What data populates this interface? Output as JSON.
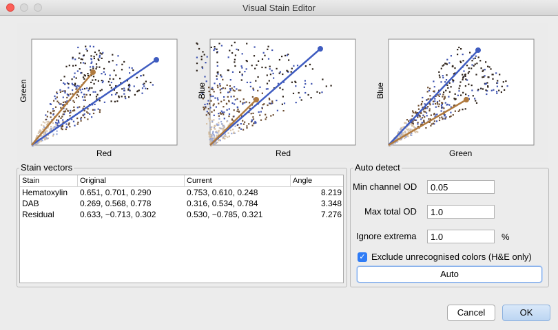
{
  "window": {
    "title": "Visual Stain Editor"
  },
  "plots": [
    {
      "xlabel": "Red",
      "ylabel": "Green"
    },
    {
      "xlabel": "Red",
      "ylabel": "Blue"
    },
    {
      "xlabel": "Green",
      "ylabel": "Blue"
    }
  ],
  "stain_vectors": {
    "title": "Stain vectors",
    "columns": [
      "Stain",
      "Original",
      "Current",
      "Angle"
    ],
    "rows": [
      {
        "stain": "Hematoxylin",
        "original": "0.651, 0.701, 0.290",
        "current": "0.753, 0.610, 0.248",
        "angle": "8.219"
      },
      {
        "stain": "DAB",
        "original": "0.269, 0.568, 0.778",
        "current": "0.316, 0.534, 0.784",
        "angle": "3.348"
      },
      {
        "stain": "Residual",
        "original": "0.633, −0.713, 0.302",
        "current": "0.530, −0.785, 0.321",
        "angle": "7.276"
      }
    ]
  },
  "auto_detect": {
    "title": "Auto detect",
    "min_channel_od_label": "Min channel OD",
    "min_channel_od_value": "0.05",
    "max_total_od_label": "Max total OD",
    "max_total_od_value": "1.0",
    "ignore_extrema_label": "Ignore extrema",
    "ignore_extrema_value": "1.0",
    "ignore_extrema_unit": "%",
    "exclude_label": "Exclude unrecognised colors (H&E only)",
    "exclude_checked": true,
    "auto_label": "Auto"
  },
  "buttons": {
    "cancel": "Cancel",
    "ok": "OK"
  },
  "colors": {
    "hematoxylin": "#3f5cc0",
    "dab": "#b07a3e",
    "close": "#fc5f57"
  }
}
